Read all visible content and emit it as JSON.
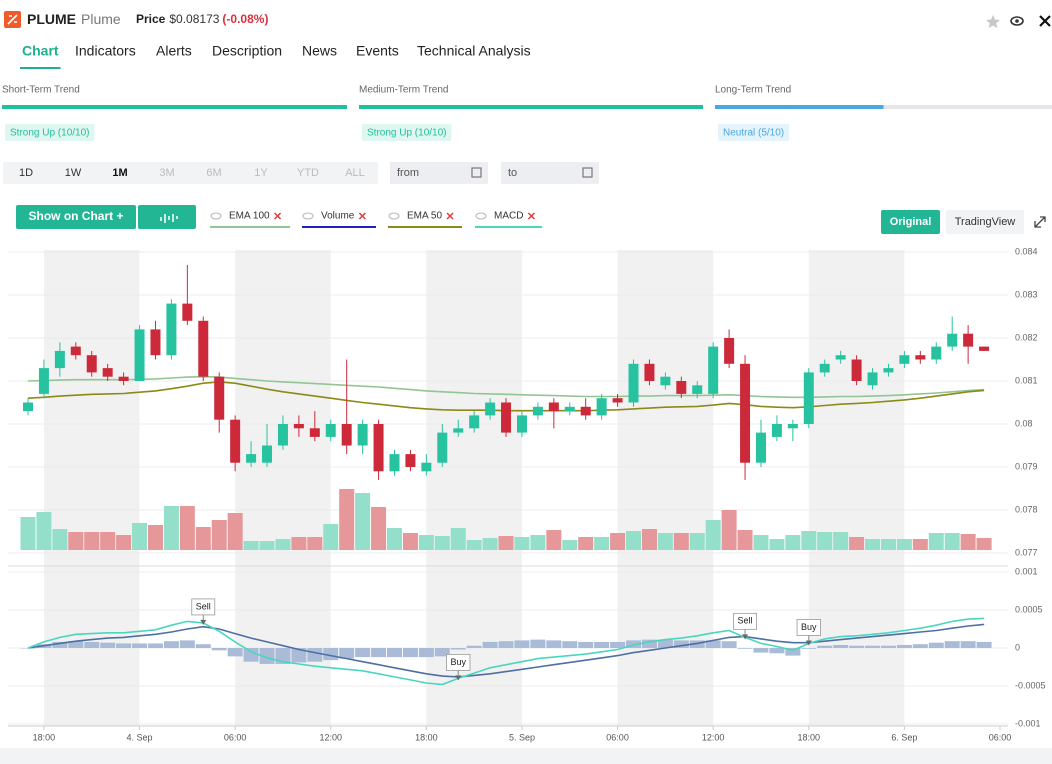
{
  "header": {
    "symbol": "PLUME",
    "name": "Plume",
    "price_label": "Price",
    "price": "$0.08173",
    "change": "(-0.08%)"
  },
  "tabs": [
    "Chart",
    "Indicators",
    "Alerts",
    "Description",
    "News",
    "Events",
    "Technical Analysis"
  ],
  "active_tab": 0,
  "trends": [
    {
      "name": "Short-Term Trend",
      "label": "Strong Up (10/10)",
      "score": 10,
      "max": 10,
      "color": "#20c09c"
    },
    {
      "name": "Medium-Term Trend",
      "label": "Strong Up (10/10)",
      "score": 10,
      "max": 10,
      "color": "#20c09c"
    },
    {
      "name": "Long-Term Trend",
      "label": "Neutral (5/10)",
      "score": 5,
      "max": 10,
      "color": "#4aa8e0"
    }
  ],
  "ranges": [
    {
      "label": "1D",
      "enabled": true
    },
    {
      "label": "1W",
      "enabled": true
    },
    {
      "label": "1M",
      "enabled": true
    },
    {
      "label": "3M",
      "enabled": false
    },
    {
      "label": "6M",
      "enabled": false
    },
    {
      "label": "1Y",
      "enabled": false
    },
    {
      "label": "YTD",
      "enabled": false
    },
    {
      "label": "ALL",
      "enabled": false
    }
  ],
  "active_range": 2,
  "date_inputs": [
    "from",
    "to"
  ],
  "buttons": {
    "show_on_chart": "Show on Chart +",
    "original": "Original",
    "tradingview": "TradingView"
  },
  "chart_data": {
    "type": "candlestick",
    "categories": [
      null,
      "18:00",
      null,
      null,
      null,
      null,
      null,
      "4. Sep",
      null,
      null,
      null,
      null,
      null,
      "06:00",
      null,
      null,
      null,
      null,
      null,
      "12:00",
      null,
      null,
      null,
      null,
      null,
      "18:00",
      null,
      null,
      null,
      null,
      null,
      "5. Sep",
      null,
      null,
      null,
      null,
      null,
      "06:00",
      null,
      null,
      null,
      null,
      null,
      "12:00",
      null,
      null,
      null,
      null,
      null,
      "18:00",
      null,
      null,
      null,
      null,
      null,
      "6. Sep",
      null,
      null,
      null,
      null,
      null,
      "06:00"
    ],
    "open": [
      0.0803,
      0.0807,
      0.0813,
      0.0818,
      0.0816,
      0.0813,
      0.0811,
      0.081,
      0.0822,
      0.0816,
      0.0828,
      0.0824,
      0.0811,
      0.0801,
      0.0791,
      0.0791,
      0.0795,
      0.08,
      0.0799,
      0.0797,
      0.08,
      0.0795,
      0.08,
      0.0789,
      0.0793,
      0.0789,
      0.0791,
      0.0798,
      0.0799,
      0.0802,
      0.0805,
      0.0798,
      0.0802,
      0.0805,
      0.0803,
      0.0804,
      0.0802,
      0.0806,
      0.0805,
      0.0814,
      0.0809,
      0.081,
      0.0807,
      0.0807,
      0.082,
      0.0814,
      0.0791,
      0.0797,
      0.0799,
      0.08,
      0.0812,
      0.0815,
      0.0815,
      0.0809,
      0.0812,
      0.0814,
      0.0816,
      0.0815,
      0.0818,
      0.0821,
      0.0818,
      null
    ],
    "high": [
      0.0806,
      0.0815,
      0.0819,
      0.0819,
      0.0817,
      0.0814,
      0.0812,
      0.0823,
      0.0824,
      0.0829,
      0.0837,
      0.0825,
      0.0812,
      0.0802,
      0.0796,
      0.08,
      0.0802,
      0.0802,
      0.0803,
      0.0801,
      0.0815,
      0.0801,
      0.0801,
      0.0794,
      0.0794,
      0.0793,
      0.08,
      0.0801,
      0.0803,
      0.0806,
      0.0806,
      0.0803,
      0.0805,
      0.0806,
      0.0805,
      0.0806,
      0.0807,
      0.0807,
      0.0815,
      0.0815,
      0.0812,
      0.0811,
      0.081,
      0.0819,
      0.0822,
      0.0816,
      0.0801,
      0.0802,
      0.0801,
      0.0813,
      0.0815,
      0.0817,
      0.0816,
      0.0813,
      0.0814,
      0.0817,
      0.0817,
      0.0819,
      0.0825,
      0.0823,
      0.0818,
      null
    ],
    "low": [
      0.0802,
      0.0806,
      0.0811,
      0.0815,
      0.0811,
      0.081,
      0.0809,
      0.081,
      0.0815,
      0.0815,
      0.0823,
      0.081,
      0.0798,
      0.0789,
      0.079,
      0.079,
      0.0794,
      0.0797,
      0.0796,
      0.0796,
      0.0793,
      0.0793,
      0.0787,
      0.0788,
      0.0789,
      0.0788,
      0.079,
      0.0797,
      0.0798,
      0.0801,
      0.0797,
      0.0797,
      0.0801,
      0.0799,
      0.0802,
      0.0801,
      0.0801,
      0.0804,
      0.0804,
      0.0809,
      0.0808,
      0.0806,
      0.0806,
      0.0806,
      0.0813,
      0.0787,
      0.079,
      0.0796,
      0.0796,
      0.0799,
      0.0811,
      0.0814,
      0.0809,
      0.0808,
      0.0811,
      0.0813,
      0.0814,
      0.0814,
      0.0817,
      0.0814,
      0.0817,
      null
    ],
    "close": [
      0.0805,
      0.0813,
      0.0817,
      0.0816,
      0.0812,
      0.0811,
      0.081,
      0.0822,
      0.0816,
      0.0828,
      0.0824,
      0.0811,
      0.0801,
      0.0791,
      0.0793,
      0.0795,
      0.08,
      0.0799,
      0.0797,
      0.08,
      0.0795,
      0.08,
      0.0789,
      0.0793,
      0.079,
      0.0791,
      0.0798,
      0.0799,
      0.0802,
      0.0805,
      0.0798,
      0.0802,
      0.0804,
      0.0803,
      0.0804,
      0.0802,
      0.0806,
      0.0805,
      0.0814,
      0.081,
      0.0811,
      0.0807,
      0.0809,
      0.0818,
      0.0814,
      0.0791,
      0.0798,
      0.08,
      0.08,
      0.0812,
      0.0814,
      0.0816,
      0.081,
      0.0812,
      0.0813,
      0.0816,
      0.0815,
      0.0818,
      0.0821,
      0.0818,
      0.0817,
      null
    ],
    "up_color": "#27c3a0",
    "down_color": "#cc2a3a",
    "ylim": [
      0.077,
      0.084
    ],
    "yticks": [
      0.077,
      0.078,
      0.079,
      0.08,
      0.081,
      0.082,
      0.083,
      0.084
    ],
    "grid": true,
    "series": [
      {
        "name": "EMA 100",
        "color": "#93c493",
        "values": [
          0.081,
          0.08101,
          0.08102,
          0.08103,
          0.08103,
          0.08103,
          0.08103,
          0.08104,
          0.08105,
          0.08107,
          0.08109,
          0.0811,
          0.08109,
          0.08106,
          0.08103,
          0.081,
          0.08098,
          0.08096,
          0.08094,
          0.08092,
          0.0809,
          0.08088,
          0.08086,
          0.08083,
          0.0808,
          0.08077,
          0.08075,
          0.08073,
          0.08071,
          0.0807,
          0.08069,
          0.08068,
          0.08067,
          0.08066,
          0.08065,
          0.08064,
          0.08064,
          0.08064,
          0.08065,
          0.08065,
          0.08066,
          0.08066,
          0.08066,
          0.08067,
          0.08068,
          0.08066,
          0.08064,
          0.08063,
          0.08062,
          0.08062,
          0.08063,
          0.08064,
          0.08064,
          0.08065,
          0.08066,
          0.08068,
          0.0807,
          0.08072,
          0.08075,
          0.08078,
          0.0808,
          null
        ]
      },
      {
        "name": "Volume",
        "color": "#2121c9",
        "up_color": "#94dfca",
        "down_color": "#e5979a",
        "values": [
          33,
          38,
          21,
          18,
          18,
          18,
          15,
          27,
          25,
          44,
          44,
          23,
          30,
          37,
          9,
          9,
          11,
          13,
          13,
          26,
          61,
          57,
          43,
          22,
          17,
          15,
          14,
          22,
          10,
          12,
          14,
          13,
          15,
          20,
          10,
          13,
          13,
          17,
          19,
          21,
          17,
          17,
          17,
          30,
          40,
          20,
          15,
          11,
          15,
          19,
          18,
          18,
          13,
          11,
          11,
          11,
          11,
          17,
          17,
          16,
          12,
          null
        ]
      },
      {
        "name": "EMA 50",
        "color": "#8c8a16",
        "values": [
          0.0806,
          0.08062,
          0.08065,
          0.08067,
          0.08069,
          0.0807,
          0.08071,
          0.08074,
          0.08077,
          0.08082,
          0.08088,
          0.08095,
          0.08098,
          0.08095,
          0.08088,
          0.08081,
          0.08075,
          0.0807,
          0.08065,
          0.0806,
          0.08055,
          0.0805,
          0.08046,
          0.08042,
          0.08038,
          0.08035,
          0.08033,
          0.08032,
          0.08032,
          0.08032,
          0.08031,
          0.08031,
          0.08031,
          0.08031,
          0.08031,
          0.08031,
          0.08032,
          0.08033,
          0.08035,
          0.08037,
          0.08039,
          0.0804,
          0.08041,
          0.08044,
          0.08048,
          0.08045,
          0.08041,
          0.08039,
          0.08038,
          0.0804,
          0.08043,
          0.08046,
          0.08048,
          0.0805,
          0.08053,
          0.08056,
          0.0806,
          0.08065,
          0.0807,
          0.08075,
          0.08078,
          null
        ]
      },
      {
        "name": "MACD",
        "color": "#4ad6bd",
        "signal_color": "#4d6fa3",
        "histogram_color": "#aabbd8",
        "ylim": [
          -0.001,
          0.001
        ],
        "yticks": [
          -0.001,
          -0.0005,
          0,
          0.0005,
          0.001
        ],
        "values": [
          0,
          8e-05,
          0.00014,
          0.00018,
          0.00019,
          0.0002,
          0.0002,
          0.00022,
          0.00024,
          0.0003,
          0.00035,
          0.00033,
          0.00022,
          8e-05,
          -5e-05,
          -0.00013,
          -0.00018,
          -0.00021,
          -0.00024,
          -0.00026,
          -0.00028,
          -0.0003,
          -0.00034,
          -0.00038,
          -0.00042,
          -0.00046,
          -0.00048,
          -0.0004,
          -0.00033,
          -0.00026,
          -0.00022,
          -0.00018,
          -0.00014,
          -0.00012,
          -0.0001,
          -8e-05,
          -5e-05,
          -2e-05,
          4e-05,
          8e-05,
          0.00011,
          0.00013,
          0.00016,
          0.0002,
          0.00023,
          0.00014,
          6e-05,
          2e-05,
          -3e-05,
          6e-05,
          0.00012,
          0.00015,
          0.00016,
          0.00018,
          0.0002,
          0.00023,
          0.00026,
          0.0003,
          0.00035,
          0.00038,
          0.00039,
          null
        ],
        "signal": [
          0,
          3e-05,
          6e-05,
          9e-05,
          0.00011,
          0.00013,
          0.00014,
          0.00016,
          0.00018,
          0.00021,
          0.00025,
          0.00028,
          0.00025,
          0.00019,
          0.00013,
          8e-05,
          3e-05,
          -2e-05,
          -6e-05,
          -0.0001,
          -0.00014,
          -0.00018,
          -0.00022,
          -0.00026,
          -0.0003,
          -0.00034,
          -0.00037,
          -0.00038,
          -0.00036,
          -0.00034,
          -0.00031,
          -0.00028,
          -0.00025,
          -0.00022,
          -0.00019,
          -0.00016,
          -0.00013,
          -0.0001,
          -6e-05,
          -3e-05,
          0,
          3e-05,
          6e-05,
          0.0001,
          0.00014,
          0.00015,
          0.00012,
          9e-05,
          7e-05,
          7e-05,
          9e-05,
          0.00011,
          0.00013,
          0.00015,
          0.00017,
          0.00019,
          0.00021,
          0.00023,
          0.00026,
          0.00029,
          0.00031,
          null
        ],
        "histogram": [
          0,
          5e-05,
          8e-05,
          9e-05,
          8e-05,
          7e-05,
          6e-05,
          6e-05,
          6e-05,
          9e-05,
          0.0001,
          5e-05,
          -3e-05,
          -0.00011,
          -0.00018,
          -0.00021,
          -0.00021,
          -0.00019,
          -0.00018,
          -0.00016,
          -0.00014,
          -0.00012,
          -0.00012,
          -0.00012,
          -0.00012,
          -0.00012,
          -0.00011,
          -2e-05,
          3e-05,
          8e-05,
          9e-05,
          0.0001,
          0.00011,
          0.0001,
          9e-05,
          8e-05,
          8e-05,
          8e-05,
          0.0001,
          0.00011,
          0.00011,
          0.0001,
          0.0001,
          0.0001,
          9e-05,
          -1e-05,
          -6e-05,
          -7e-05,
          -0.0001,
          -1e-05,
          3e-05,
          4e-05,
          3e-05,
          3e-05,
          3e-05,
          4e-05,
          5e-05,
          7e-05,
          9e-05,
          9e-05,
          8e-05,
          null
        ]
      }
    ],
    "annotations": [
      {
        "label": "Sell",
        "index": 11
      },
      {
        "label": "Buy",
        "index": 27
      },
      {
        "label": "Sell",
        "index": 45
      },
      {
        "label": "Buy",
        "index": 49
      }
    ]
  }
}
